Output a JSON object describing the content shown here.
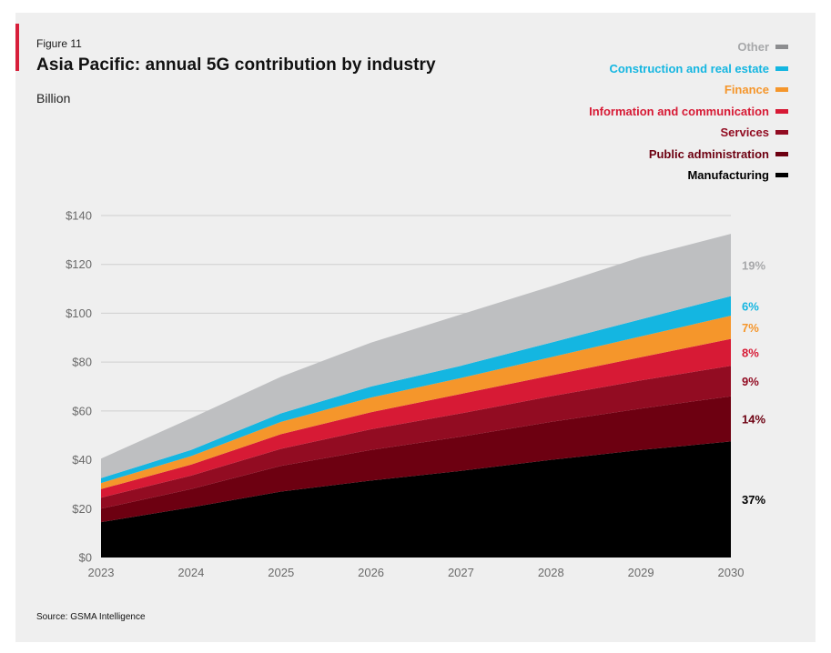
{
  "figure_label": "Figure 11",
  "title": "Asia Pacific: annual 5G contribution by industry",
  "unit_label": "Billion",
  "source": "Source: GSMA Intelligence",
  "chart_data": {
    "type": "area",
    "stacked": true,
    "x": [
      2023,
      2024,
      2025,
      2026,
      2027,
      2028,
      2029,
      2030
    ],
    "y_tick_labels": [
      "$0",
      "$20",
      "$40",
      "$60",
      "$80",
      "$100",
      "$120",
      "$140"
    ],
    "ylim": [
      0,
      140
    ],
    "grid": true,
    "legend_position": "top-right",
    "series": [
      {
        "name": "Manufacturing",
        "color": "#000000",
        "label_color": "#000000",
        "end_label": "37%",
        "values": [
          14.5,
          20.5,
          27,
          31.5,
          35.5,
          40,
          44,
          47.5
        ]
      },
      {
        "name": "Public administration",
        "color": "#6d0011",
        "label_color": "#6d0011",
        "end_label": "14%",
        "values": [
          5.5,
          7.5,
          10.5,
          12.5,
          14,
          15.5,
          17,
          18.5
        ]
      },
      {
        "name": "Services",
        "color": "#920c22",
        "label_color": "#920c22",
        "end_label": "9%",
        "values": [
          4.5,
          5.5,
          7,
          8.5,
          9.5,
          10.5,
          11.5,
          12.5
        ]
      },
      {
        "name": "Information and communication",
        "color": "#d71a35",
        "label_color": "#d71a35",
        "end_label": "8%",
        "values": [
          3.5,
          4.5,
          6,
          7,
          8,
          8.5,
          9.5,
          11
        ]
      },
      {
        "name": "Finance",
        "color": "#f5962b",
        "label_color": "#f5962b",
        "end_label": "7%",
        "values": [
          2.5,
          3.5,
          5,
          6,
          6.5,
          7.5,
          8.5,
          9.5
        ]
      },
      {
        "name": "Construction and real estate",
        "color": "#14b6e1",
        "label_color": "#14b6e1",
        "end_label": "6%",
        "values": [
          2.0,
          2.5,
          3.5,
          4.5,
          5.0,
          6.0,
          7.0,
          8.0
        ]
      },
      {
        "name": "Other",
        "color": "#bebfc1",
        "label_color": "#a7a8aa",
        "end_label": "19%",
        "values": [
          8.0,
          13.0,
          15.0,
          18.0,
          21.0,
          23.0,
          25.5,
          25.5
        ]
      }
    ]
  }
}
